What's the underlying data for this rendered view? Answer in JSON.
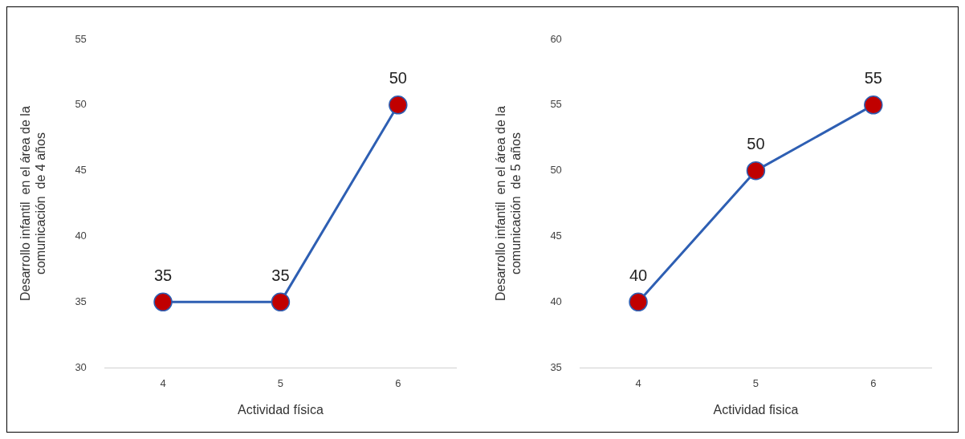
{
  "chart_data": [
    {
      "type": "line",
      "categories": [
        "4",
        "5",
        "6"
      ],
      "series": [
        {
          "color": "#2e5fb3",
          "values": [
            35,
            35,
            50
          ]
        }
      ],
      "marker": "circle",
      "line_style": "solid",
      "ylim": [
        30,
        55
      ],
      "yticks": [
        30,
        35,
        40,
        45,
        50,
        55
      ],
      "xlabel": "Actividad física",
      "ylabel": "Desarrollo infantil  en el área de la comunicación  de 4 años",
      "data_labels": true,
      "grid": false,
      "legend": false
    },
    {
      "type": "line",
      "categories": [
        "4",
        "5",
        "6"
      ],
      "series": [
        {
          "color": "#2e5fb3",
          "values": [
            40,
            50,
            55
          ]
        }
      ],
      "marker": "circle",
      "line_style": "solid",
      "ylim": [
        35,
        60
      ],
      "yticks": [
        35,
        40,
        45,
        50,
        55,
        60
      ],
      "xlabel": "Actividad fisica",
      "ylabel": "Desarrollo infantil  en el área de la comunicación  de 5 años",
      "data_labels": true,
      "grid": false,
      "legend": false
    }
  ]
}
